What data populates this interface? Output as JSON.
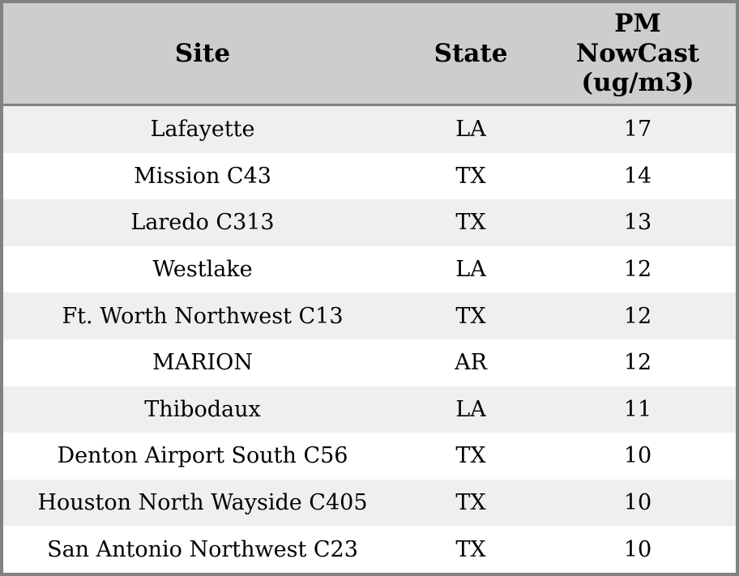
{
  "table": {
    "columns": [
      {
        "key": "site",
        "label": "Site"
      },
      {
        "key": "state",
        "label": "State"
      },
      {
        "key": "value",
        "label": "PM NowCast (ug/m3)"
      }
    ],
    "rows": [
      {
        "site": "Lafayette",
        "state": "LA",
        "value": "17"
      },
      {
        "site": "Mission C43",
        "state": "TX",
        "value": "14"
      },
      {
        "site": "Laredo C313",
        "state": "TX",
        "value": "13"
      },
      {
        "site": "Westlake",
        "state": "LA",
        "value": "12"
      },
      {
        "site": "Ft. Worth Northwest C13",
        "state": "TX",
        "value": "12"
      },
      {
        "site": "MARION",
        "state": "AR",
        "value": "12"
      },
      {
        "site": "Thibodaux",
        "state": "LA",
        "value": "11"
      },
      {
        "site": "Denton Airport South C56",
        "state": "TX",
        "value": "10"
      },
      {
        "site": "Houston North Wayside C405",
        "state": "TX",
        "value": "10"
      },
      {
        "site": "San Antonio Northwest C23",
        "state": "TX",
        "value": "10"
      }
    ],
    "colors": {
      "header_bg": "#cdcdcd",
      "row_stripe": "#efefef",
      "row_plain": "#ffffff",
      "border": "#828282",
      "text": "#000000"
    }
  },
  "chart_data": {
    "type": "table",
    "title": "",
    "columns": [
      "Site",
      "State",
      "PM NowCast (ug/m3)"
    ],
    "rows": [
      [
        "Lafayette",
        "LA",
        17
      ],
      [
        "Mission C43",
        "TX",
        14
      ],
      [
        "Laredo C313",
        "TX",
        13
      ],
      [
        "Westlake",
        "LA",
        12
      ],
      [
        "Ft. Worth Northwest C13",
        "TX",
        12
      ],
      [
        "MARION",
        "AR",
        12
      ],
      [
        "Thibodaux",
        "LA",
        11
      ],
      [
        "Denton Airport South C56",
        "TX",
        10
      ],
      [
        "Houston North Wayside C405",
        "TX",
        10
      ],
      [
        "San Antonio Northwest C23",
        "TX",
        10
      ]
    ],
    "layout_hints": {
      "header_background": "#cdcdcd",
      "zebra_striping": true,
      "first_data_row_shaded": true,
      "text_alignment": "center"
    }
  }
}
